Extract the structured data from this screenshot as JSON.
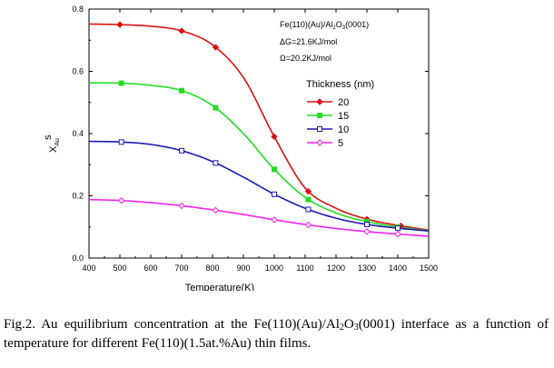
{
  "chart_data": {
    "type": "line",
    "xlabel": "Temperature(K)",
    "ylabel": "X",
    "ylabel_superscript": "s",
    "ylabel_subscript": "Au",
    "xlim": [
      400,
      1500
    ],
    "ylim": [
      0.0,
      0.8
    ],
    "xticks": [
      "400",
      "500",
      "600",
      "700",
      "800",
      "900",
      "1000",
      "1100",
      "1200",
      "1300",
      "1400",
      "1500"
    ],
    "yticks": [
      "0.0",
      "0.2",
      "0.4",
      "0.6",
      "0.8"
    ],
    "grid": false,
    "legend": {
      "title": "Thickness (nm)",
      "position": "right"
    },
    "annotations": {
      "line1": "Fe(110)(Au)/Al",
      "line1_sub_a": "2",
      "line1_mid": "O",
      "line1_sub_b": "3",
      "line1_end": "(0001)",
      "line2": "ΔG=21.6KJ/mol",
      "line3": "Ω=20.2KJ/mol"
    },
    "x": [
      400,
      500,
      600,
      700,
      800,
      900,
      1000,
      1100,
      1200,
      1300,
      1400,
      1500
    ],
    "series": [
      {
        "name": "20",
        "color": "#dd1111",
        "marker": "diamond-filled",
        "values": [
          0.752,
          0.75,
          0.745,
          0.73,
          0.685,
          0.58,
          0.39,
          0.225,
          0.16,
          0.125,
          0.105,
          0.09
        ]
      },
      {
        "name": "15",
        "color": "#22dd22",
        "marker": "square-filled",
        "values": [
          0.563,
          0.562,
          0.555,
          0.538,
          0.49,
          0.4,
          0.285,
          0.195,
          0.145,
          0.117,
          0.1,
          0.088
        ]
      },
      {
        "name": "10",
        "color": "#1a1ab8",
        "marker": "square-open",
        "values": [
          0.375,
          0.373,
          0.365,
          0.345,
          0.31,
          0.26,
          0.205,
          0.16,
          0.128,
          0.108,
          0.096,
          0.087
        ]
      },
      {
        "name": "5",
        "color": "#ee22ee",
        "marker": "diamond-open",
        "values": [
          0.188,
          0.185,
          0.178,
          0.168,
          0.155,
          0.14,
          0.123,
          0.108,
          0.095,
          0.085,
          0.077,
          0.07
        ]
      }
    ],
    "markers_x": [
      [
        500,
        700,
        810,
        1000,
        1110,
        1300,
        1410
      ],
      [
        505,
        700,
        810,
        1000,
        1110,
        1300,
        1400
      ],
      [
        505,
        700,
        810,
        1000,
        1110,
        1300,
        1400
      ],
      [
        505,
        700,
        810,
        1000,
        1110,
        1300,
        1400
      ]
    ]
  },
  "caption": {
    "part1": "Fig.2. Au equilibrium concentration at the Fe(110)(Au)/Al",
    "sub1": "2",
    "part2": "O",
    "sub2": "3",
    "part3": "(0001) interface as a function of temperature for different Fe(110)(1.5at.%Au) thin films."
  }
}
